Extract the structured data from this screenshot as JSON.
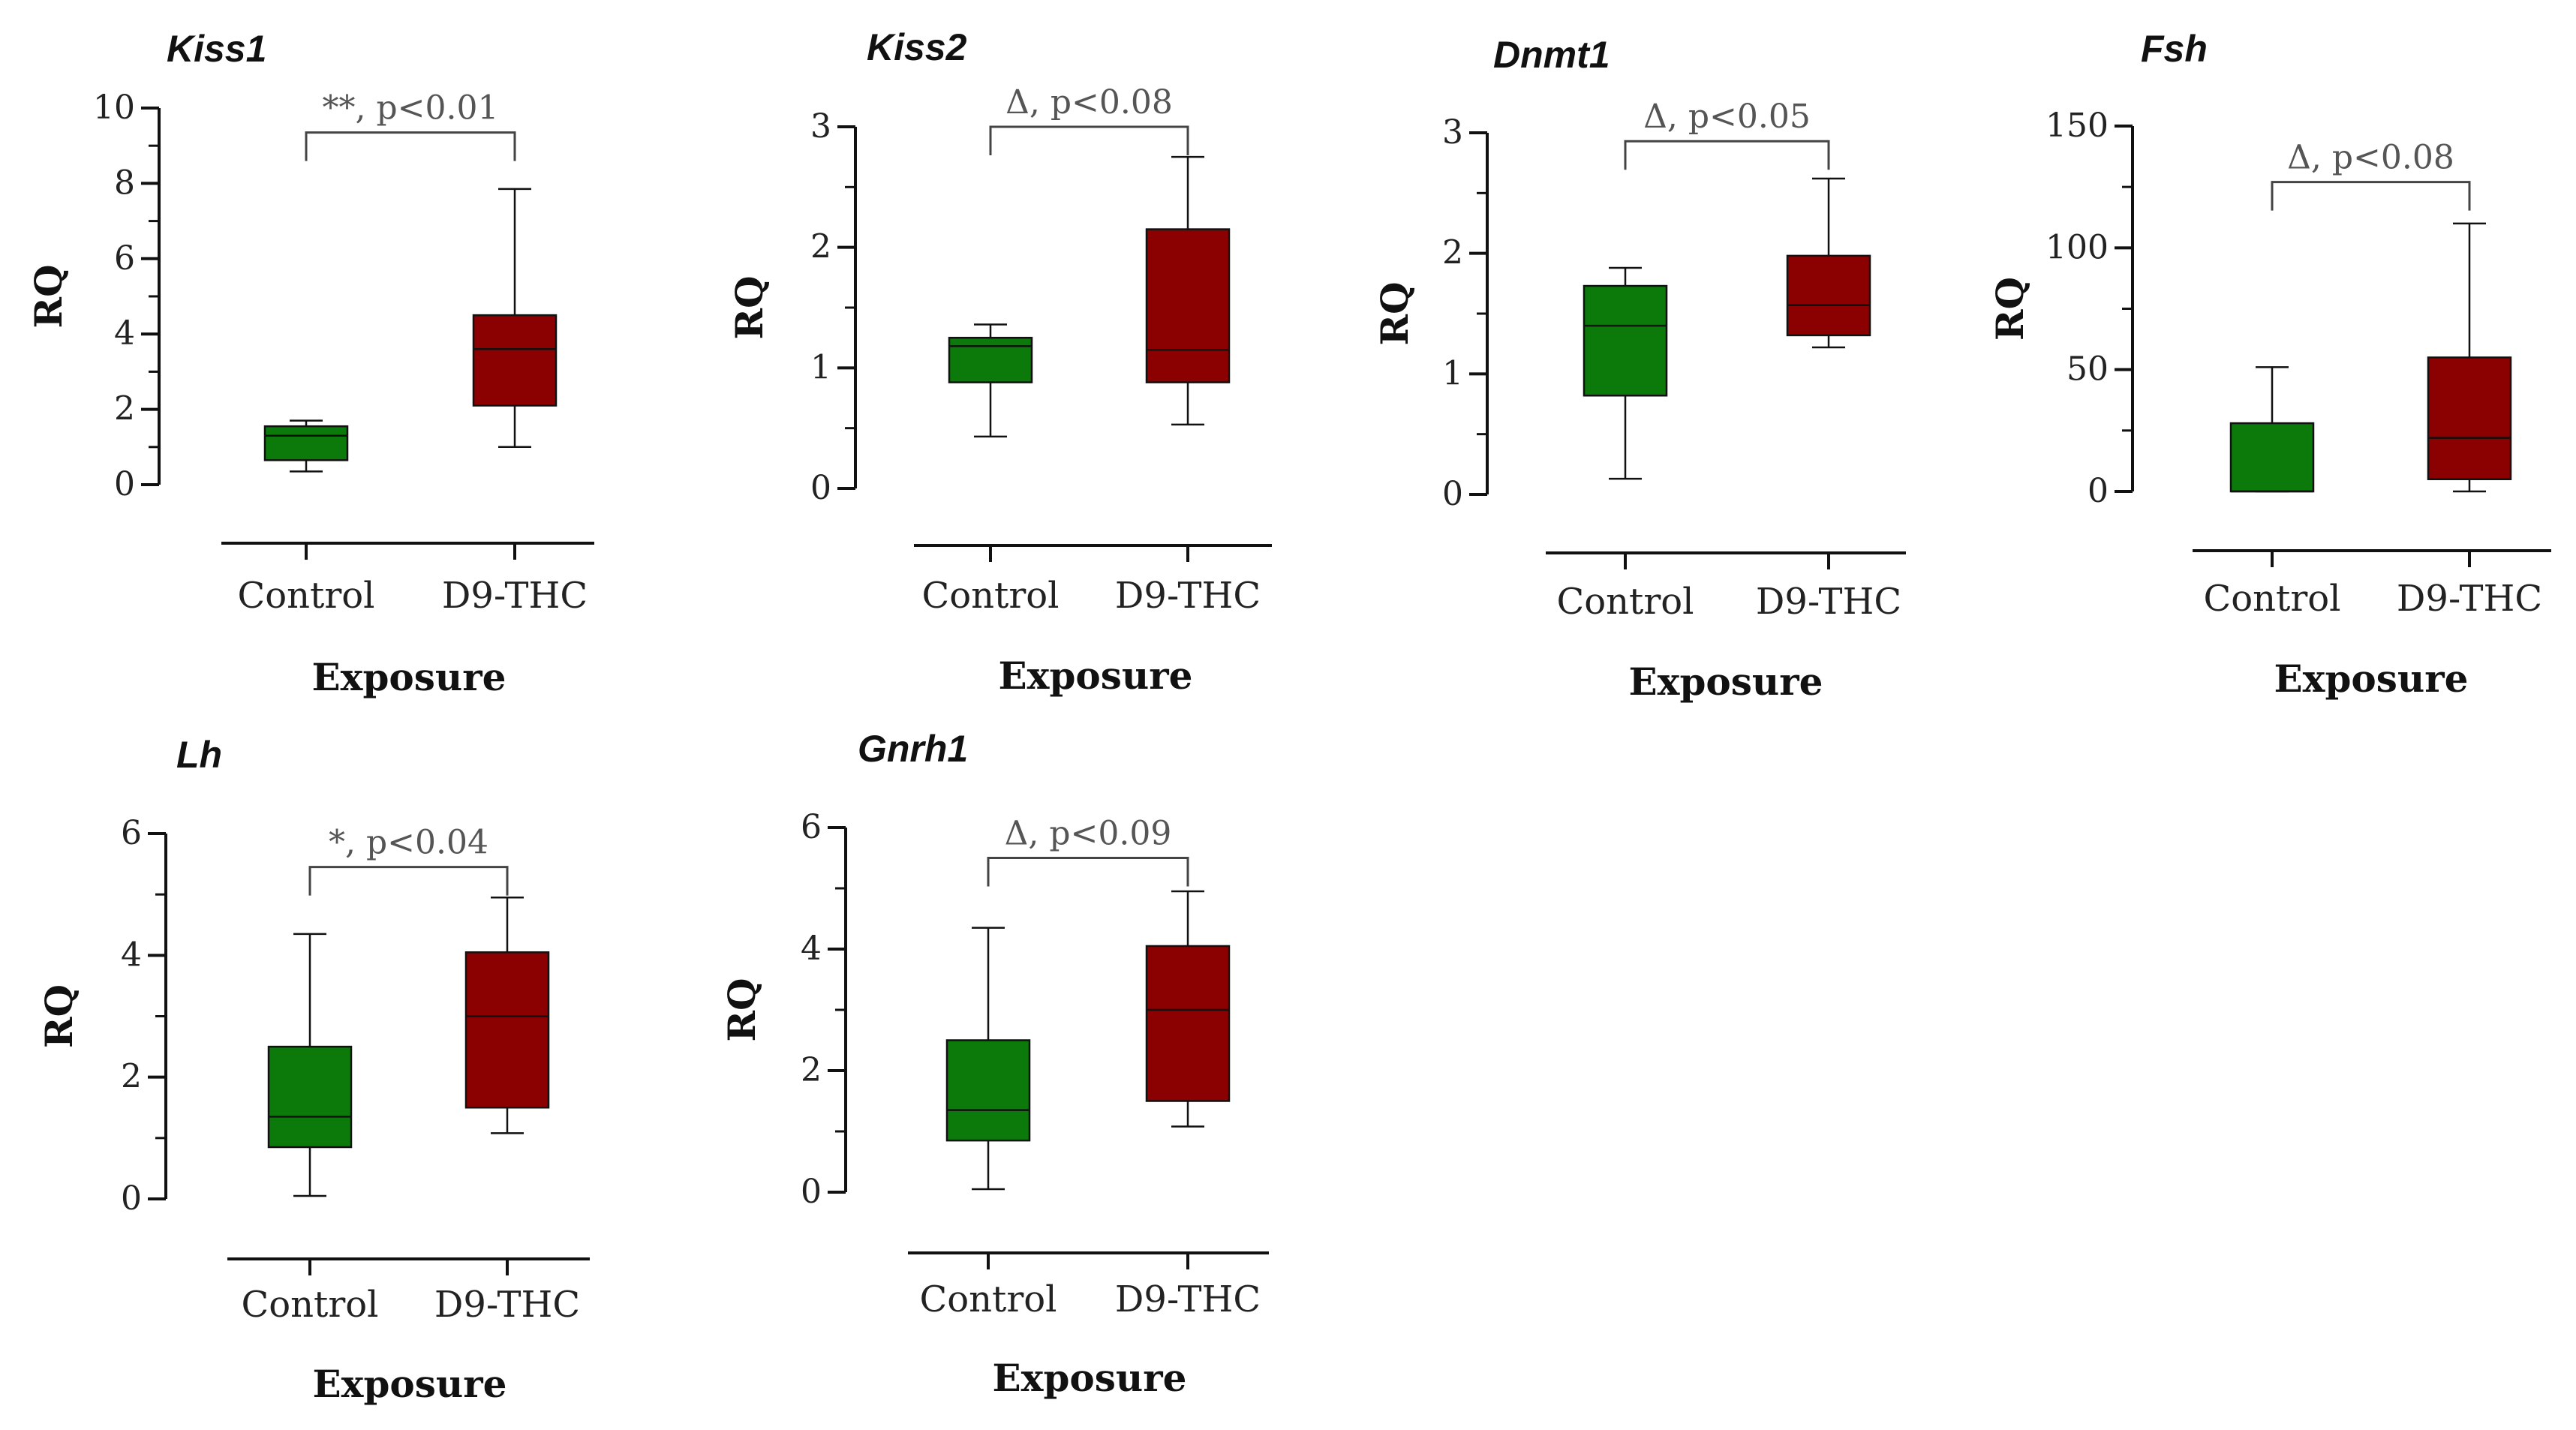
{
  "figure_colors": {
    "control": "#0b7a0b",
    "treatment": "#8b0000",
    "line": "#111111",
    "bracket": "#444444"
  },
  "chart_data": [
    {
      "type": "box",
      "title": "Kiss1",
      "xlabel": "Exposure",
      "ylabel": "RQ",
      "categories": [
        "Control",
        "D9-THC"
      ],
      "ylim": [
        0,
        10
      ],
      "yticks": [
        "0",
        "2",
        "4",
        "6",
        "8",
        "10"
      ],
      "boxes": [
        {
          "name": "Control",
          "min": 0.35,
          "q1": 0.65,
          "median": 1.3,
          "q3": 1.55,
          "max": 1.7
        },
        {
          "name": "D9-THC",
          "min": 1.0,
          "q1": 2.1,
          "median": 3.6,
          "q3": 4.5,
          "max": 7.85
        }
      ],
      "significance": {
        "label": "**, p<0.01",
        "level": 9.35
      }
    },
    {
      "type": "box",
      "title": "Kiss2",
      "xlabel": "Exposure",
      "ylabel": "RQ",
      "categories": [
        "Control",
        "D9-THC"
      ],
      "ylim": [
        0,
        3
      ],
      "yticks": [
        "0",
        "1",
        "2",
        "3"
      ],
      "boxes": [
        {
          "name": "Control",
          "min": 0.43,
          "q1": 0.88,
          "median": 1.18,
          "q3": 1.25,
          "max": 1.36
        },
        {
          "name": "D9-THC",
          "min": 0.53,
          "q1": 0.88,
          "median": 1.15,
          "q3": 2.15,
          "max": 2.75
        }
      ],
      "significance": {
        "label": "Δ, p<0.08",
        "level": 3.0
      }
    },
    {
      "type": "box",
      "title": "Dnmt1",
      "xlabel": "Exposure",
      "ylabel": "RQ",
      "categories": [
        "Control",
        "D9-THC"
      ],
      "ylim": [
        0,
        3
      ],
      "yticks": [
        "0",
        "1",
        "2",
        "3"
      ],
      "boxes": [
        {
          "name": "Control",
          "min": 0.13,
          "q1": 0.82,
          "median": 1.4,
          "q3": 1.73,
          "max": 1.88
        },
        {
          "name": "D9-THC",
          "min": 1.22,
          "q1": 1.32,
          "median": 1.57,
          "q3": 1.98,
          "max": 2.62
        }
      ],
      "significance": {
        "label": "Δ, p<0.05",
        "level": 2.93
      }
    },
    {
      "type": "box",
      "title": "Fsh",
      "xlabel": "Exposure",
      "ylabel": "RQ",
      "categories": [
        "Control",
        "D9-THC"
      ],
      "ylim": [
        0,
        150
      ],
      "yticks": [
        "0",
        "50",
        "100",
        "150"
      ],
      "boxes": [
        {
          "name": "Control",
          "min": 0,
          "q1": 0,
          "median": 0,
          "q3": 28,
          "max": 51
        },
        {
          "name": "D9-THC",
          "min": 0,
          "q1": 5,
          "median": 22,
          "q3": 55,
          "max": 110
        }
      ],
      "significance": {
        "label": "Δ, p<0.08",
        "level": 127
      }
    },
    {
      "type": "box",
      "title": "Lh",
      "xlabel": "Exposure",
      "ylabel": "RQ",
      "categories": [
        "Control",
        "D9-THC"
      ],
      "ylim": [
        0,
        6
      ],
      "yticks": [
        "0",
        "2",
        "4",
        "6"
      ],
      "boxes": [
        {
          "name": "Control",
          "min": 0.05,
          "q1": 0.85,
          "median": 1.35,
          "q3": 2.5,
          "max": 4.35
        },
        {
          "name": "D9-THC",
          "min": 1.08,
          "q1": 1.5,
          "median": 3.0,
          "q3": 4.05,
          "max": 4.95
        }
      ],
      "significance": {
        "label": "*, p<0.04",
        "level": 5.45
      }
    },
    {
      "type": "box",
      "title": "Gnrh1",
      "xlabel": "Exposure",
      "ylabel": "RQ",
      "categories": [
        "Control",
        "D9-THC"
      ],
      "ylim": [
        0,
        6
      ],
      "yticks": [
        "0",
        "2",
        "4",
        "6"
      ],
      "boxes": [
        {
          "name": "Control",
          "min": 0.05,
          "q1": 0.85,
          "median": 1.35,
          "q3": 2.5,
          "max": 4.35
        },
        {
          "name": "D9-THC",
          "min": 1.08,
          "q1": 1.5,
          "median": 3.0,
          "q3": 4.05,
          "max": 4.95
        }
      ],
      "significance": {
        "label": "Δ, p<0.09",
        "level": 5.5
      }
    }
  ]
}
